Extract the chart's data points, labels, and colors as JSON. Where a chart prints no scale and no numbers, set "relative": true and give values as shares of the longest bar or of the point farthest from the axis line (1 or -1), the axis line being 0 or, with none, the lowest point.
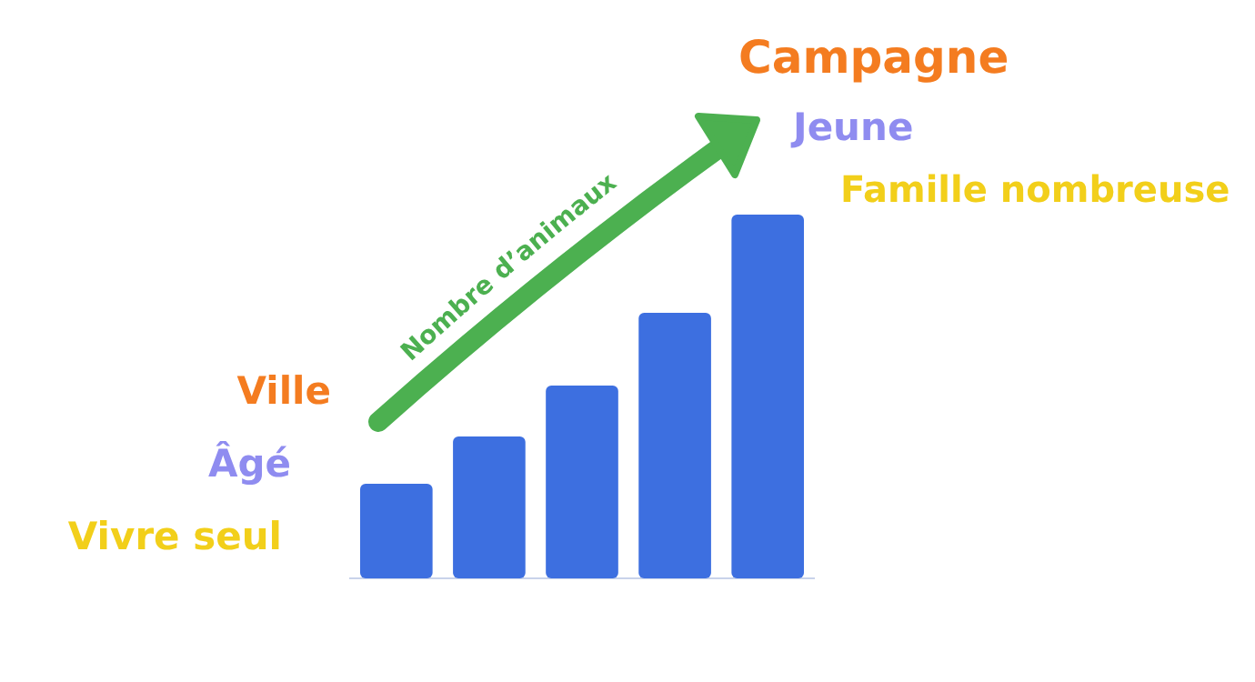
{
  "chart_data": {
    "type": "bar",
    "relative": true,
    "categories": [
      null,
      null,
      null,
      null,
      null
    ],
    "values": [
      0.26,
      0.39,
      0.53,
      0.73,
      1
    ],
    "color": "#3d6fe0",
    "annotations": [
      "Nombre d’animaux",
      "Ville",
      "Âgé",
      "Vivre seul",
      "Campagne",
      "Jeune",
      "Famille nombreuse"
    ]
  }
}
